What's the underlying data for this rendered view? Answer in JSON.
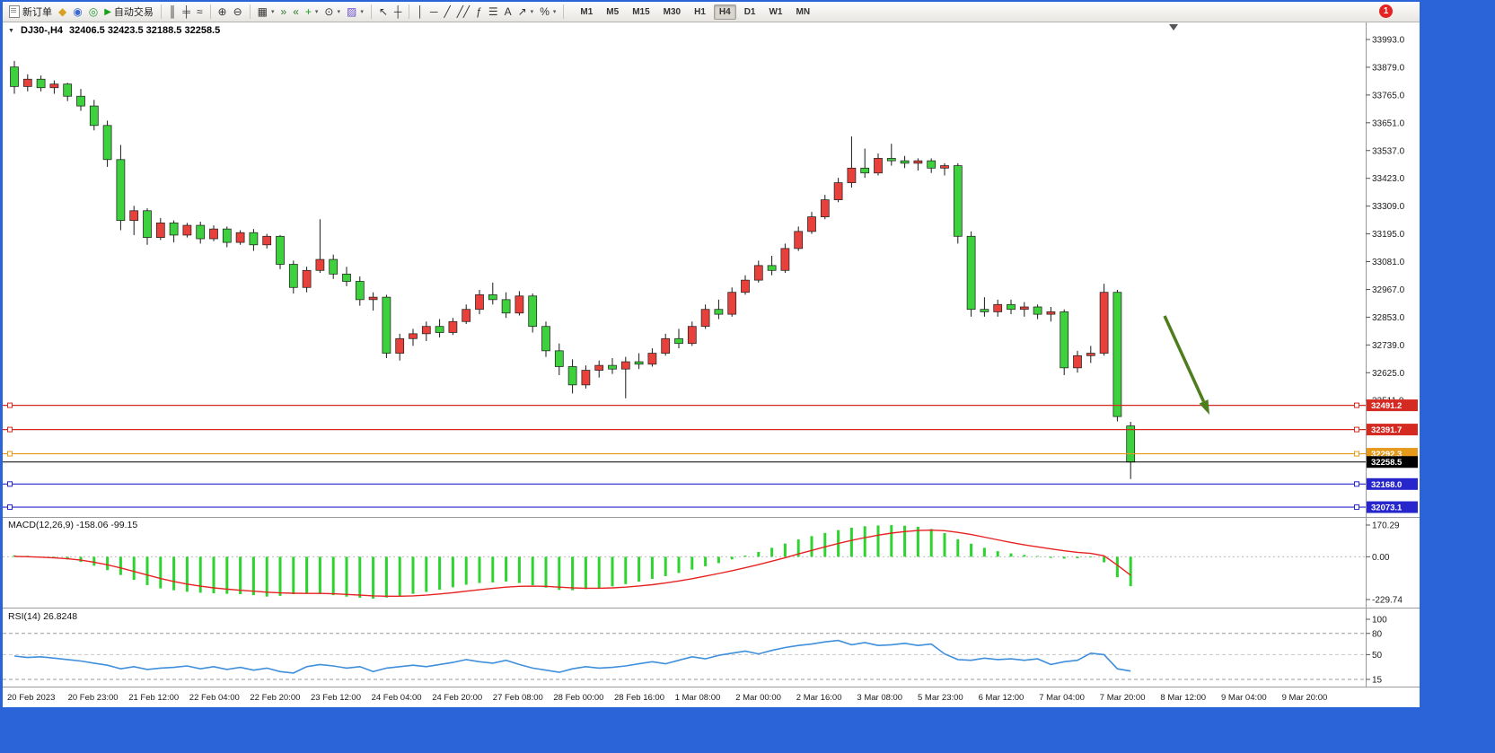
{
  "window": {
    "badge": "1",
    "frame_color": "#2b64d9"
  },
  "toolbar": {
    "new_order": "新订单",
    "autotrade": "自动交易",
    "group1": [
      {
        "name": "metaeditor-icon",
        "glyph": "◆",
        "color": "#d8a020"
      },
      {
        "name": "profiles-icon",
        "glyph": "◉",
        "color": "#3a6ad0"
      },
      {
        "name": "scripts-icon",
        "glyph": "◎",
        "color": "#2a9a3a"
      }
    ],
    "group2": [
      {
        "sep": true
      },
      {
        "name": "bar-chart-icon",
        "glyph": "║",
        "color": "#333333"
      },
      {
        "name": "candlestick-chart-icon",
        "glyph": "╪",
        "color": "#333333"
      },
      {
        "name": "line-chart-icon",
        "glyph": "≈",
        "color": "#333333"
      },
      {
        "sep": true
      },
      {
        "name": "zoom-in-icon",
        "glyph": "⊕",
        "color": "#333333"
      },
      {
        "name": "zoom-out-icon",
        "glyph": "⊖",
        "color": "#333333"
      },
      {
        "sep": true
      },
      {
        "name": "tile-windows-icon",
        "glyph": "▦",
        "color": "#333333",
        "caret": true
      },
      {
        "name": "auto-scroll-icon",
        "glyph": "»",
        "color": "#2a7a2a"
      },
      {
        "name": "chart-shift-icon",
        "glyph": "«",
        "color": "#2a7a2a"
      },
      {
        "name": "add-indicator-icon",
        "glyph": "+",
        "color": "#18a018",
        "caret": true
      },
      {
        "name": "periods-icon",
        "glyph": "⊙",
        "color": "#333333",
        "caret": true
      },
      {
        "name": "templates-icon",
        "glyph": "▨",
        "color": "#6a4fd0",
        "caret": true
      },
      {
        "sep": true
      }
    ],
    "group3": [
      {
        "name": "cursor-icon",
        "glyph": "↖",
        "color": "#333333"
      },
      {
        "name": "crosshair-icon",
        "glyph": "┼",
        "color": "#333333"
      },
      {
        "sep": true
      },
      {
        "name": "vertical-line-icon",
        "glyph": "│",
        "color": "#333333"
      },
      {
        "name": "horizontal-line-icon",
        "glyph": "─",
        "color": "#333333"
      },
      {
        "name": "trendline-icon",
        "glyph": "╱",
        "color": "#333333"
      },
      {
        "name": "channel-icon",
        "glyph": "╱╱",
        "color": "#333333"
      },
      {
        "name": "fibonacci-icon",
        "glyph": "ƒ",
        "color": "#333333"
      },
      {
        "name": "objects-icon",
        "glyph": "☰",
        "color": "#333333"
      },
      {
        "name": "text-icon",
        "glyph": "A",
        "color": "#333333"
      },
      {
        "name": "arrows-icon",
        "glyph": "↗",
        "color": "#333333",
        "caret": true
      },
      {
        "name": "cycles-icon",
        "glyph": "%",
        "color": "#333333",
        "caret": true
      },
      {
        "sep": true
      }
    ],
    "timeframes": [
      "M1",
      "M5",
      "M15",
      "M30",
      "H1",
      "H4",
      "D1",
      "W1",
      "MN"
    ],
    "active_timeframe": "H4"
  },
  "chart": {
    "title_symbol": "DJ30-,H4",
    "title_ohlc": "32406.5 32423.5 32188.5 32258.5"
  },
  "macd_label": {
    "name": "MACD(12,26,9)",
    "values": "-158.06 -99.15"
  },
  "rsi_label": {
    "name": "RSI(14)",
    "value": "26.8248"
  },
  "chart_data": {
    "type": "candlestick",
    "symbol": "DJ30-",
    "timeframe": "H4",
    "color_convention": "red=up, green=down (Chinese convention)",
    "colors": {
      "up": "#e8403a",
      "down": "#3dd13d",
      "wick": "#1a1a1a",
      "macd_histogram": "#2fd32f",
      "macd_signal": "#e82222",
      "rsi_line": "#3f8fdc"
    },
    "price_axis_labels": [
      "33993.0",
      "33879.0",
      "33765.0",
      "33651.0",
      "33537.0",
      "33423.0",
      "33309.0",
      "33195.0",
      "33081.0",
      "32967.0",
      "32853.0",
      "32739.0",
      "32625.0",
      "32511.0"
    ],
    "time_axis_labels": [
      "20 Feb 2023",
      "20 Feb 23:00",
      "21 Feb 12:00",
      "22 Feb 04:00",
      "22 Feb 20:00",
      "23 Feb 12:00",
      "24 Feb 04:00",
      "24 Feb 20:00",
      "27 Feb 08:00",
      "28 Feb 00:00",
      "28 Feb 16:00",
      "1 Mar 08:00",
      "2 Mar 00:00",
      "2 Mar 16:00",
      "3 Mar 08:00",
      "5 Mar 23:00",
      "6 Mar 12:00",
      "7 Mar 04:00",
      "7 Mar 20:00",
      "8 Mar 12:00",
      "9 Mar 04:00",
      "9 Mar 20:00"
    ],
    "candles": [
      [
        33880,
        33905,
        33770,
        33800
      ],
      [
        33800,
        33850,
        33780,
        33830
      ],
      [
        33830,
        33845,
        33780,
        33795
      ],
      [
        33795,
        33825,
        33770,
        33810
      ],
      [
        33810,
        33815,
        33740,
        33760
      ],
      [
        33760,
        33790,
        33700,
        33720
      ],
      [
        33720,
        33745,
        33620,
        33640
      ],
      [
        33640,
        33660,
        33470,
        33500
      ],
      [
        33500,
        33560,
        33210,
        33250
      ],
      [
        33250,
        33310,
        33190,
        33290
      ],
      [
        33290,
        33300,
        33150,
        33180
      ],
      [
        33180,
        33260,
        33170,
        33240
      ],
      [
        33240,
        33250,
        33160,
        33190
      ],
      [
        33190,
        33240,
        33180,
        33230
      ],
      [
        33230,
        33245,
        33155,
        33175
      ],
      [
        33175,
        33230,
        33165,
        33215
      ],
      [
        33215,
        33225,
        33140,
        33160
      ],
      [
        33160,
        33210,
        33150,
        33200
      ],
      [
        33200,
        33215,
        33125,
        33150
      ],
      [
        33150,
        33195,
        33135,
        33185
      ],
      [
        33185,
        33190,
        33050,
        33070
      ],
      [
        33070,
        33085,
        32950,
        32975
      ],
      [
        32975,
        33060,
        32955,
        33045
      ],
      [
        33045,
        33255,
        33035,
        33090
      ],
      [
        33090,
        33110,
        33010,
        33030
      ],
      [
        33030,
        33060,
        32980,
        33000
      ],
      [
        33000,
        33020,
        32900,
        32925
      ],
      [
        32925,
        32955,
        32880,
        32935
      ],
      [
        32935,
        32945,
        32685,
        32705
      ],
      [
        32705,
        32785,
        32675,
        32765
      ],
      [
        32765,
        32805,
        32735,
        32785
      ],
      [
        32785,
        32835,
        32755,
        32815
      ],
      [
        32815,
        32845,
        32770,
        32790
      ],
      [
        32790,
        32850,
        32780,
        32835
      ],
      [
        32835,
        32905,
        32825,
        32885
      ],
      [
        32885,
        32965,
        32865,
        32945
      ],
      [
        32945,
        32995,
        32905,
        32925
      ],
      [
        32925,
        32955,
        32850,
        32870
      ],
      [
        32870,
        32960,
        32860,
        32940
      ],
      [
        32940,
        32950,
        32790,
        32815
      ],
      [
        32815,
        32835,
        32690,
        32715
      ],
      [
        32715,
        32745,
        32615,
        32650
      ],
      [
        32650,
        32680,
        32540,
        32575
      ],
      [
        32575,
        32655,
        32560,
        32635
      ],
      [
        32635,
        32675,
        32605,
        32655
      ],
      [
        32655,
        32685,
        32620,
        32640
      ],
      [
        32640,
        32690,
        32520,
        32670
      ],
      [
        32670,
        32705,
        32640,
        32660
      ],
      [
        32660,
        32725,
        32650,
        32705
      ],
      [
        32705,
        32785,
        32695,
        32765
      ],
      [
        32765,
        32805,
        32725,
        32745
      ],
      [
        32745,
        32835,
        32735,
        32815
      ],
      [
        32815,
        32905,
        32805,
        32885
      ],
      [
        32885,
        32925,
        32845,
        32865
      ],
      [
        32865,
        32975,
        32855,
        32955
      ],
      [
        32955,
        33025,
        32945,
        33005
      ],
      [
        33005,
        33085,
        32995,
        33065
      ],
      [
        33065,
        33105,
        33025,
        33045
      ],
      [
        33045,
        33155,
        33035,
        33135
      ],
      [
        33135,
        33225,
        33125,
        33205
      ],
      [
        33205,
        33285,
        33195,
        33265
      ],
      [
        33265,
        33355,
        33255,
        33335
      ],
      [
        33335,
        33425,
        33325,
        33405
      ],
      [
        33405,
        33595,
        33385,
        33465
      ],
      [
        33465,
        33545,
        33425,
        33445
      ],
      [
        33445,
        33525,
        33435,
        33505
      ],
      [
        33505,
        33565,
        33475,
        33495
      ],
      [
        33495,
        33515,
        33465,
        33485
      ],
      [
        33485,
        33505,
        33455,
        33495
      ],
      [
        33495,
        33505,
        33445,
        33465
      ],
      [
        33465,
        33485,
        33435,
        33475
      ],
      [
        33475,
        33485,
        33155,
        33185
      ],
      [
        33185,
        33205,
        32855,
        32885
      ],
      [
        32885,
        32935,
        32855,
        32875
      ],
      [
        32875,
        32925,
        32855,
        32905
      ],
      [
        32905,
        32925,
        32865,
        32885
      ],
      [
        32885,
        32915,
        32855,
        32895
      ],
      [
        32895,
        32905,
        32845,
        32865
      ],
      [
        32865,
        32895,
        32835,
        32875
      ],
      [
        32875,
        32885,
        32615,
        32645
      ],
      [
        32645,
        32715,
        32625,
        32695
      ],
      [
        32695,
        32735,
        32665,
        32705
      ],
      [
        32705,
        32990,
        32695,
        32955
      ],
      [
        32955,
        32965,
        32425,
        32445
      ],
      [
        32406.5,
        32423.5,
        32188.5,
        32258.5
      ]
    ],
    "horizontal_lines": [
      {
        "label": "32491.2",
        "price": 32491.2,
        "color": "#d42a22"
      },
      {
        "label": "32391.7",
        "price": 32391.7,
        "color": "#d42a22"
      },
      {
        "label": "32292.3",
        "price": 32292.3,
        "color": "#e59a1b"
      },
      {
        "label": "32168.0",
        "price": 32168.0,
        "color": "#2626cc"
      },
      {
        "label": "32073.1",
        "price": 32073.1,
        "color": "#2626cc"
      }
    ],
    "current_price_line": {
      "label": "32258.5",
      "price": 32258.5,
      "color": "#000000"
    },
    "macd": {
      "axis_labels": [
        {
          "text": "170.29",
          "value": 170.29
        },
        {
          "text": "0.00",
          "value": 0
        },
        {
          "text": "-229.74",
          "value": -229.74
        }
      ],
      "histogram": [
        8,
        5,
        0,
        -6,
        -14,
        -28,
        -48,
        -72,
        -98,
        -124,
        -152,
        -170,
        -180,
        -188,
        -193,
        -196,
        -199,
        -201,
        -206,
        -214,
        -210,
        -201,
        -196,
        -199,
        -206,
        -214,
        -220,
        -225,
        -219,
        -210,
        -199,
        -189,
        -177,
        -164,
        -150,
        -141,
        -138,
        -133,
        -141,
        -153,
        -166,
        -178,
        -180,
        -174,
        -167,
        -159,
        -147,
        -134,
        -119,
        -104,
        -87,
        -69,
        -51,
        -34,
        -14,
        6,
        26,
        48,
        71,
        93,
        111,
        128,
        143,
        156,
        164,
        168,
        170,
        167,
        161,
        149,
        127,
        94,
        70,
        48,
        30,
        18,
        10,
        4,
        -6,
        -10,
        -8,
        -4,
        -30,
        -110,
        -158.06
      ],
      "signal": [
        2,
        0,
        -2,
        -6,
        -11,
        -18,
        -29,
        -43,
        -60,
        -79,
        -98,
        -117,
        -133,
        -147,
        -158,
        -167,
        -174,
        -180,
        -185,
        -190,
        -194,
        -196,
        -197,
        -197,
        -199,
        -202,
        -206,
        -210,
        -212,
        -212,
        -210,
        -206,
        -200,
        -193,
        -185,
        -177,
        -170,
        -163,
        -159,
        -158,
        -159,
        -163,
        -167,
        -169,
        -169,
        -167,
        -163,
        -157,
        -150,
        -141,
        -130,
        -118,
        -104,
        -90,
        -75,
        -59,
        -42,
        -24,
        -5,
        15,
        34,
        53,
        71,
        88,
        103,
        116,
        127,
        135,
        141,
        143,
        140,
        131,
        119,
        105,
        91,
        77,
        64,
        53,
        42,
        32,
        24,
        18,
        5,
        -45,
        -99.15
      ]
    },
    "rsi": {
      "axis_labels": [
        {
          "text": "100",
          "value": 100
        },
        {
          "text": "80",
          "value": 80
        },
        {
          "text": "50",
          "value": 50
        },
        {
          "text": "15",
          "value": 15
        }
      ],
      "levels": [
        80,
        50,
        15
      ],
      "values": [
        48,
        46,
        47,
        45,
        43,
        41,
        38,
        35,
        30,
        33,
        29,
        31,
        32,
        34,
        30,
        33,
        29,
        32,
        28,
        31,
        26,
        24,
        33,
        36,
        34,
        31,
        33,
        26,
        31,
        33,
        35,
        33,
        36,
        39,
        43,
        40,
        38,
        42,
        36,
        31,
        28,
        25,
        30,
        33,
        31,
        32,
        34,
        37,
        40,
        37,
        42,
        47,
        44,
        49,
        52,
        55,
        51,
        56,
        60,
        63,
        65,
        68,
        70,
        64,
        67,
        63,
        64,
        66,
        63,
        65,
        51,
        43,
        42,
        45,
        43,
        44,
        42,
        44,
        36,
        40,
        42,
        52,
        50,
        30,
        26.82
      ]
    },
    "arrow_annotation": {
      "color": "#4e7d1e",
      "direction": "down-right",
      "from_price": 32700,
      "to_price": 32480
    }
  }
}
